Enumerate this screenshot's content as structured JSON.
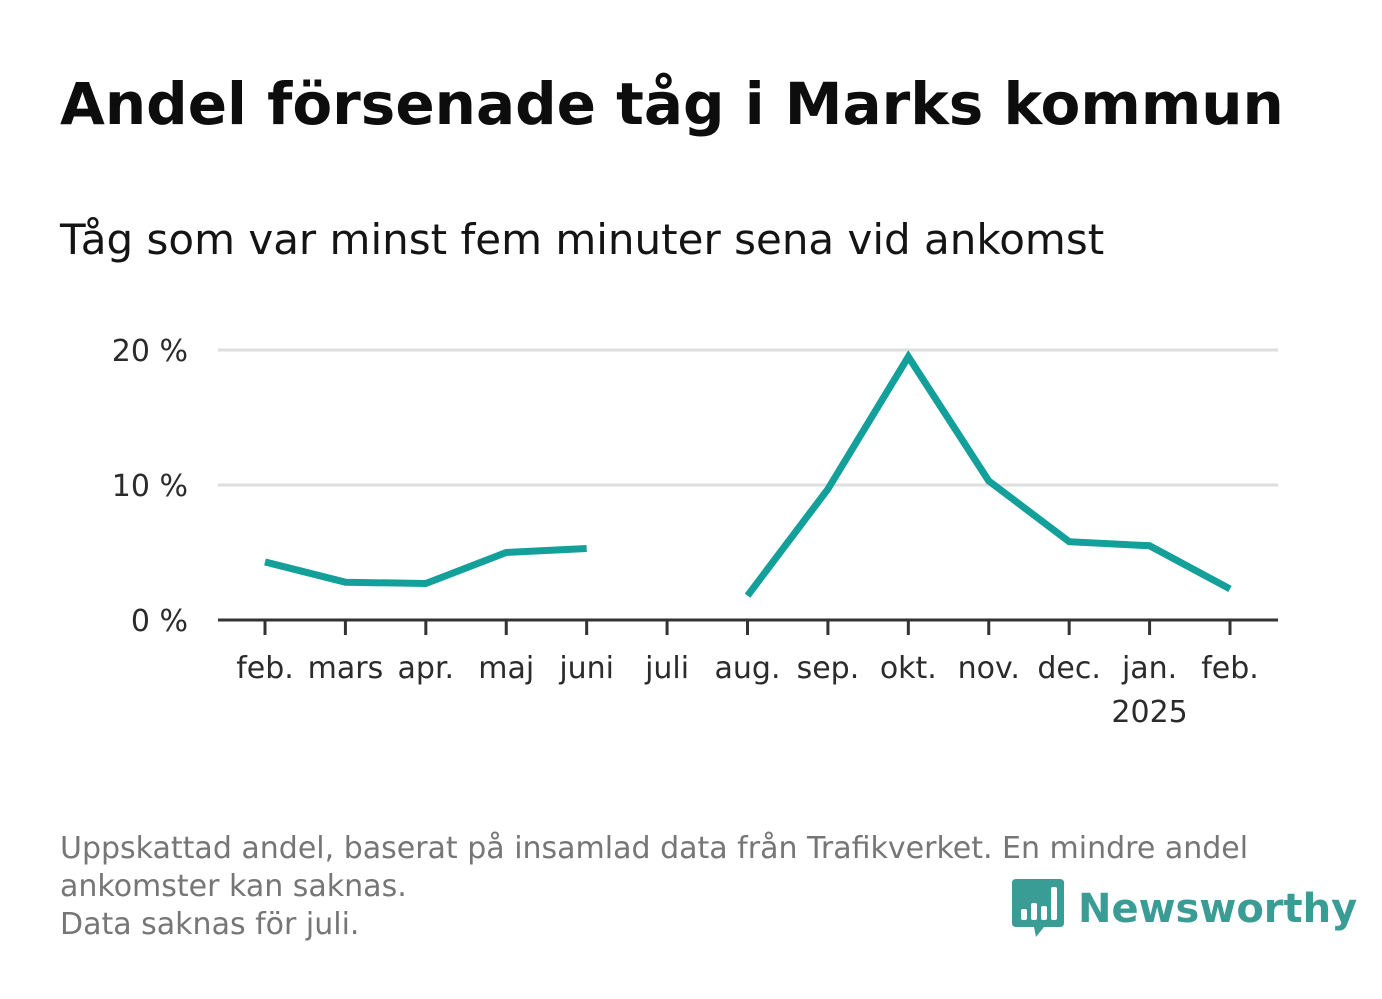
{
  "title": "Andel försenade tåg i Marks kommun",
  "subtitle": "Tåg som var minst fem minuter sena vid ankomst",
  "footer": {
    "line1": "Uppskattad andel, baserat på insamlad data från Trafikverket. En mindre andel",
    "line2": "ankomster kan saknas.",
    "line3": "Data saknas för juli."
  },
  "brand": {
    "name": "Newsworthy",
    "icon": "bar-chart-speech-bubble-icon",
    "color": "#3a9d95"
  },
  "colors": {
    "line": "#14a09a",
    "grid": "#dedede",
    "axis": "#333333"
  },
  "chart_data": {
    "type": "line",
    "title": "Andel försenade tåg i Marks kommun",
    "subtitle": "Tåg som var minst fem minuter sena vid ankomst",
    "categories": [
      "feb.",
      "mars",
      "apr.",
      "maj",
      "juni",
      "juli",
      "aug.",
      "sep.",
      "okt.",
      "nov.",
      "dec.",
      "jan.",
      "feb."
    ],
    "year_labels": [
      "",
      "",
      "",
      "",
      "",
      "",
      "",
      "",
      "",
      "",
      "",
      "2025",
      ""
    ],
    "series": [
      {
        "values": [
          4.3,
          2.8,
          2.7,
          5.0,
          5.3,
          null,
          1.8,
          9.7,
          19.5,
          10.3,
          5.8,
          5.5,
          2.3
        ]
      }
    ],
    "ylim": [
      0,
      20
    ],
    "yticks": [
      0,
      10,
      20
    ],
    "ytick_labels": [
      "0 %",
      "10 %",
      "20 %"
    ],
    "grid": true
  }
}
